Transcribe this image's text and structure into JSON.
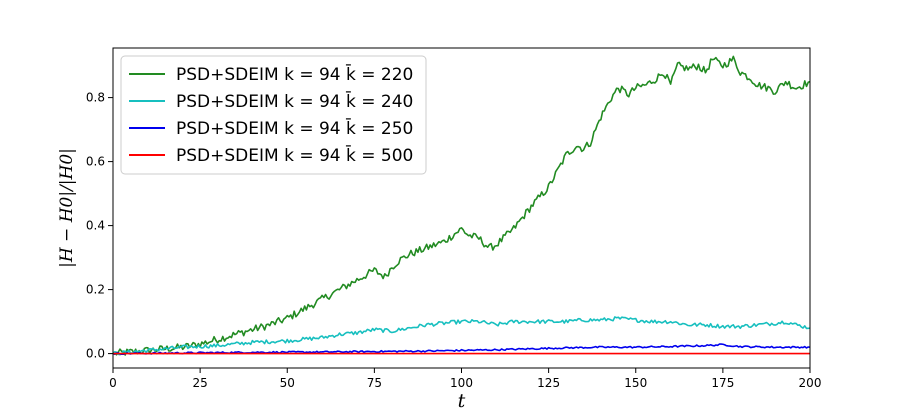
{
  "chart_data": {
    "type": "line",
    "xlabel": "t",
    "ylabel": "|H − H0|/|H0|",
    "xlim": [
      0,
      200
    ],
    "ylim": [
      -0.045,
      0.955
    ],
    "x_ticks": [
      0,
      25,
      50,
      75,
      100,
      125,
      150,
      175,
      200
    ],
    "y_ticks": [
      0.0,
      0.2,
      0.4,
      0.6,
      0.8
    ],
    "x_tick_labels": [
      "0",
      "25",
      "50",
      "75",
      "100",
      "125",
      "150",
      "175",
      "200"
    ],
    "y_tick_labels": [
      "0.0",
      "0.2",
      "0.4",
      "0.6",
      "0.8"
    ],
    "grid": false,
    "legend_position": "top-left",
    "series": [
      {
        "name": "PSD+SDEIM k = 94 k̄ = 220",
        "color": "#228b22",
        "x": [
          0,
          5,
          10,
          15,
          20,
          25,
          30,
          35,
          40,
          45,
          50,
          55,
          60,
          65,
          70,
          75,
          78,
          80,
          82,
          85,
          90,
          95,
          100,
          102,
          105,
          108,
          110,
          115,
          120,
          125,
          128,
          130,
          133,
          135,
          137,
          140,
          143,
          145,
          148,
          150,
          153,
          156,
          158,
          160,
          162,
          165,
          168,
          170,
          172,
          175,
          178,
          180,
          183,
          185,
          188,
          190,
          193,
          196,
          198,
          200
        ],
        "y": [
          0.0,
          0.005,
          0.01,
          0.015,
          0.02,
          0.03,
          0.045,
          0.06,
          0.075,
          0.09,
          0.11,
          0.14,
          0.17,
          0.2,
          0.23,
          0.26,
          0.24,
          0.27,
          0.29,
          0.31,
          0.33,
          0.35,
          0.39,
          0.37,
          0.36,
          0.33,
          0.34,
          0.39,
          0.46,
          0.52,
          0.58,
          0.62,
          0.65,
          0.64,
          0.66,
          0.74,
          0.8,
          0.83,
          0.81,
          0.83,
          0.84,
          0.86,
          0.88,
          0.84,
          0.9,
          0.89,
          0.9,
          0.88,
          0.92,
          0.9,
          0.92,
          0.88,
          0.86,
          0.84,
          0.83,
          0.82,
          0.85,
          0.83,
          0.84,
          0.85
        ]
      },
      {
        "name": "PSD+SDEIM k = 94 k̄ = 240",
        "color": "#17bfbf",
        "x": [
          0,
          10,
          20,
          30,
          40,
          50,
          60,
          65,
          70,
          75,
          80,
          85,
          90,
          95,
          100,
          105,
          110,
          115,
          120,
          125,
          130,
          135,
          140,
          145,
          150,
          155,
          160,
          165,
          170,
          175,
          180,
          185,
          190,
          193,
          196,
          200
        ],
        "y": [
          0.0,
          0.01,
          0.02,
          0.025,
          0.035,
          0.04,
          0.05,
          0.06,
          0.065,
          0.075,
          0.07,
          0.08,
          0.09,
          0.095,
          0.1,
          0.1,
          0.09,
          0.1,
          0.1,
          0.1,
          0.1,
          0.105,
          0.105,
          0.11,
          0.105,
          0.1,
          0.1,
          0.09,
          0.09,
          0.085,
          0.085,
          0.09,
          0.095,
          0.1,
          0.09,
          0.08
        ]
      },
      {
        "name": "PSD+SDEIM k = 94 k̄ = 250",
        "color": "#0000ee",
        "x": [
          0,
          20,
          40,
          60,
          80,
          90,
          100,
          110,
          120,
          130,
          140,
          150,
          160,
          170,
          175,
          180,
          190,
          200
        ],
        "y": [
          0.0,
          0.002,
          0.004,
          0.005,
          0.007,
          0.008,
          0.01,
          0.012,
          0.015,
          0.018,
          0.02,
          0.02,
          0.022,
          0.025,
          0.028,
          0.022,
          0.02,
          0.02
        ]
      },
      {
        "name": "PSD+SDEIM k = 94 k̄ = 500",
        "color": "#ff0000",
        "x": [
          0,
          200
        ],
        "y": [
          0.0,
          0.0
        ]
      }
    ]
  }
}
